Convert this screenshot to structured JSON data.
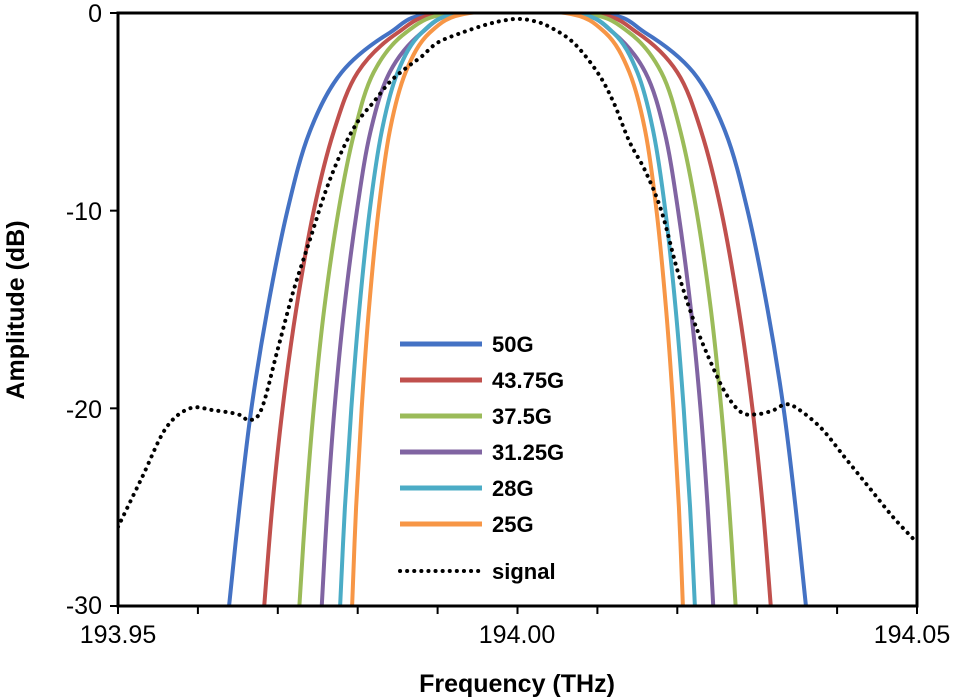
{
  "chart_data": {
    "type": "line",
    "title": "",
    "xlabel": "Frequency (THz)",
    "ylabel": "Amplitude (dB)",
    "xlim": [
      193.95,
      194.05
    ],
    "ylim": [
      -30,
      0
    ],
    "x_tick_labels": [
      "193.95",
      "194.00",
      "194.05"
    ],
    "x_tick_values": [
      193.95,
      194.0,
      194.05
    ],
    "y_tick_labels": [
      "0",
      "-10",
      "-20",
      "-30"
    ],
    "y_tick_values": [
      0,
      -10,
      -20,
      -30
    ],
    "grid": false,
    "legend_position": "center-left-bottom",
    "series": [
      {
        "name": "50G",
        "color": "#4472C4",
        "style": "solid",
        "x": [
          193.9639,
          193.9652,
          193.9667,
          193.9687,
          193.9712,
          193.974,
          193.978,
          193.984,
          193.99,
          194.01,
          194.016,
          194.022,
          194.026,
          194.0288,
          194.0313,
          194.0333,
          194.0348,
          194.0361
        ],
        "y": [
          -30,
          -25,
          -20,
          -15,
          -10,
          -6,
          -3,
          -1,
          0,
          0,
          -1,
          -3,
          -6,
          -10,
          -15,
          -20,
          -25,
          -30
        ]
      },
      {
        "name": "43.75G",
        "color": "#C0504D",
        "style": "solid",
        "x": [
          193.9683,
          193.9693,
          193.9706,
          193.9723,
          193.9745,
          193.977,
          193.98,
          193.985,
          193.991,
          194.009,
          194.015,
          194.02,
          194.023,
          194.0255,
          194.0277,
          194.0294,
          194.0307,
          194.0317
        ],
        "y": [
          -30,
          -25,
          -20,
          -15,
          -10,
          -6,
          -3,
          -1,
          0,
          0,
          -1,
          -3,
          -6,
          -10,
          -15,
          -20,
          -25,
          -30
        ]
      },
      {
        "name": "37.5G",
        "color": "#9BBB59",
        "style": "solid",
        "x": [
          193.9727,
          193.9735,
          193.9745,
          193.9758,
          193.9776,
          193.9796,
          193.982,
          193.986,
          193.992,
          194.008,
          194.014,
          194.018,
          194.0204,
          194.0224,
          194.0242,
          194.0255,
          194.0265,
          194.0273
        ],
        "y": [
          -30,
          -25,
          -20,
          -15,
          -10,
          -6,
          -3,
          -1,
          0,
          0,
          -1,
          -3,
          -6,
          -10,
          -15,
          -20,
          -25,
          -30
        ]
      },
      {
        "name": "31.25G",
        "color": "#8064A2",
        "style": "solid",
        "x": [
          193.9755,
          193.9762,
          193.9771,
          193.9783,
          193.9799,
          193.9816,
          193.984,
          193.988,
          193.993,
          194.007,
          194.012,
          194.016,
          194.0184,
          194.0201,
          194.0217,
          194.0229,
          194.0238,
          194.0245
        ],
        "y": [
          -30,
          -25,
          -20,
          -15,
          -10,
          -6,
          -3,
          -1,
          0,
          0,
          -1,
          -3,
          -6,
          -10,
          -15,
          -20,
          -25,
          -30
        ]
      },
      {
        "name": "28G",
        "color": "#4BACC6",
        "style": "solid",
        "x": [
          193.9778,
          193.9784,
          193.9792,
          193.9802,
          193.9815,
          193.983,
          193.985,
          193.988,
          193.993,
          194.007,
          194.012,
          194.015,
          194.017,
          194.0185,
          194.0198,
          194.0208,
          194.0216,
          194.0222
        ],
        "y": [
          -30,
          -25,
          -20,
          -15,
          -10,
          -6,
          -3,
          -1,
          0,
          0,
          -1,
          -3,
          -6,
          -10,
          -15,
          -20,
          -25,
          -30
        ]
      },
      {
        "name": "25G",
        "color": "#F79646",
        "style": "solid",
        "x": [
          193.9793,
          193.9798,
          193.9805,
          193.9814,
          193.9826,
          193.984,
          193.986,
          193.989,
          193.994,
          194.006,
          194.011,
          194.014,
          194.016,
          194.0174,
          194.0186,
          194.0195,
          194.0202,
          194.0207
        ],
        "y": [
          -30,
          -25,
          -20,
          -15,
          -10,
          -6,
          -3,
          -1,
          0,
          0,
          -1,
          -3,
          -6,
          -10,
          -15,
          -20,
          -25,
          -30
        ]
      },
      {
        "name": "signal",
        "color": "#000000",
        "style": "dotted",
        "x": [
          193.95,
          193.953,
          193.956,
          193.959,
          193.962,
          193.965,
          193.9665,
          193.968,
          193.97,
          193.972,
          193.974,
          193.976,
          193.978,
          193.98,
          193.982,
          193.984,
          193.986,
          193.988,
          193.99,
          193.993,
          193.996,
          193.998,
          194.0,
          194.002,
          194.004,
          194.007,
          194.01,
          194.012,
          194.014,
          194.016,
          194.018,
          194.02,
          194.022,
          194.024,
          194.026,
          194.028,
          194.03,
          194.032,
          194.0335,
          194.035,
          194.038,
          194.041,
          194.044,
          194.047,
          194.05
        ],
        "y": [
          -26,
          -23.5,
          -21,
          -20,
          -20.1,
          -20.3,
          -20.6,
          -20,
          -17,
          -14,
          -11.5,
          -9,
          -7,
          -5.5,
          -4.5,
          -3.5,
          -2.8,
          -2.2,
          -1.5,
          -1,
          -0.6,
          -0.4,
          -0.3,
          -0.4,
          -0.7,
          -1.5,
          -3,
          -4.5,
          -6.5,
          -8,
          -10,
          -13,
          -15.5,
          -17.5,
          -19.2,
          -20.2,
          -20.3,
          -20.1,
          -19.8,
          -20,
          -21,
          -22.5,
          -24,
          -25.5,
          -26.8
        ]
      }
    ]
  }
}
